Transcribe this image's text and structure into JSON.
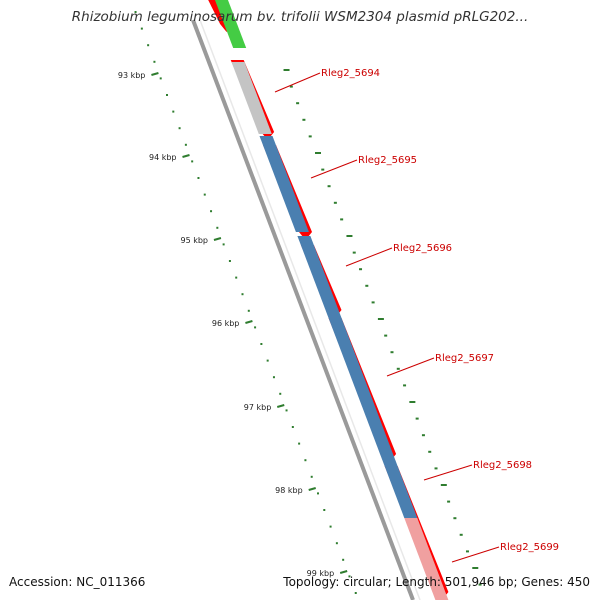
{
  "title": "Rhizobium leguminosarum bv. trifolii WSM2304 plasmid pRLG202...",
  "accession_label": "Accession: NC_011366",
  "stats_label": "Topology: circular; Length: 501,946 bp; Genes: 450",
  "colors": {
    "backbone": "#9a9a9a",
    "cds_strand": "#ff0000",
    "tick": "#2f7d2f",
    "gene_label": "#cc0000",
    "gene_blue": "#4a7fb0",
    "gene_gray": "#c4c4c4",
    "gene_green": "#44cc44",
    "gene_pink": "#f0a0a0"
  },
  "axis": {
    "kbp_labels": [
      "93 kbp",
      "94 kbp",
      "95 kbp",
      "96 kbp",
      "97 kbp",
      "98 kbp",
      "99 kbp"
    ]
  },
  "genes": [
    {
      "label": "Rleg2_5694",
      "color": "gene_gray"
    },
    {
      "label": "Rleg2_5695",
      "color": "gene_blue"
    },
    {
      "label": "Rleg2_5696",
      "color": "gene_blue"
    },
    {
      "label": "Rleg2_5697",
      "color": "gene_blue"
    },
    {
      "label": "Rleg2_5698",
      "color": "gene_blue"
    },
    {
      "label": "Rleg2_5699",
      "color": "gene_pink"
    }
  ]
}
